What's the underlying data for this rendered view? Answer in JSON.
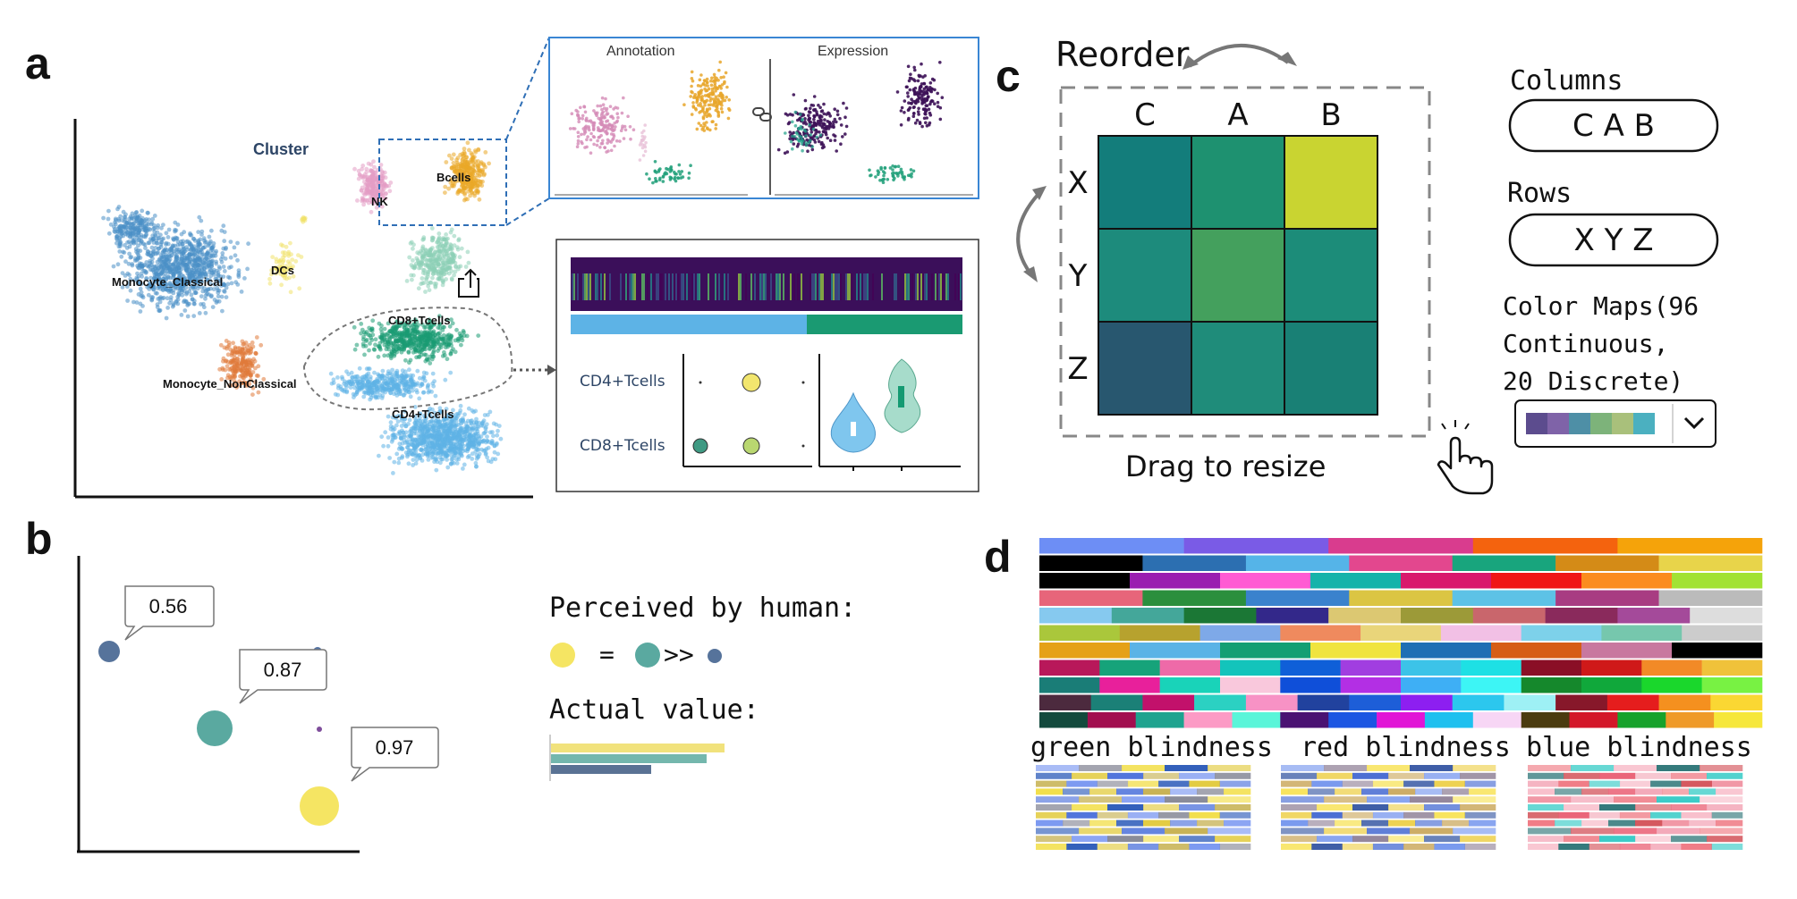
{
  "panel_labels": {
    "a": "a",
    "b": "b",
    "c": "c",
    "d": "d"
  },
  "panel_a": {
    "title": "Cluster",
    "clusters": [
      {
        "name": "Monocyte_Classical",
        "color": "#4a8fc7"
      },
      {
        "name": "DCs",
        "color": "#f0e26a"
      },
      {
        "name": "NK",
        "color": "#e39cc4"
      },
      {
        "name": "Bcells",
        "color": "#eaa827"
      },
      {
        "name": "CD8+Tcells",
        "color": "#1a9a72"
      },
      {
        "name": "CD4+Tcells",
        "color": "#5fb3e6"
      },
      {
        "name": "Monocyte_NonClassical",
        "color": "#e07a3a"
      }
    ],
    "inset": {
      "annotation_title": "Annotation",
      "expression_title": "Expression",
      "link_icon": "link-icon"
    },
    "export_icon": "share-export-icon",
    "dot_plot": {
      "rows": [
        "CD4+Tcells",
        "CD8+Tcells"
      ]
    }
  },
  "panel_b": {
    "callouts": [
      "0.56",
      "0.87",
      "0.97"
    ],
    "perceived_label": "Perceived by human:",
    "equals": "=",
    "much_greater": ">>",
    "actual_label": "Actual value:",
    "points": [
      {
        "value": 0.56,
        "color": "#56739b"
      },
      {
        "value": 0.87,
        "color": "#5aa9a0"
      },
      {
        "value": 0.97,
        "color": "#f5e563"
      }
    ],
    "bar_colors": [
      "#f1e27c",
      "#74b7ad",
      "#5a7294"
    ]
  },
  "panel_c": {
    "title": "Reorder",
    "columns": [
      "C",
      "A",
      "B"
    ],
    "rows": [
      "X",
      "Y",
      "Z"
    ],
    "heatmap_colors": [
      [
        "#137d7b",
        "#1e9170",
        "#c9d431"
      ],
      [
        "#1d8b7c",
        "#44a05d",
        "#1c8c79"
      ],
      [
        "#28576f",
        "#1f8c7a",
        "#198075"
      ]
    ],
    "resize_label": "Drag to resize",
    "columns_label": "Columns",
    "columns_value": "C A B",
    "rows_label": "Rows",
    "rows_value": "X Y Z",
    "colormap_label_1": "Color Maps(96",
    "colormap_label_2": "Continuous,",
    "colormap_label_3": "20 Discrete)",
    "colormap_swatch": [
      "#5c4c8e",
      "#7f63a8",
      "#4e8fa6",
      "#7db37a",
      "#a9c07b",
      "#4bb0c0"
    ],
    "dropdown_icon": "chevron-down-icon",
    "cursor_icon": "hand-pointer-icon"
  },
  "panel_d": {
    "palettes": [
      [
        "#6d8ef5",
        "#7a5be6",
        "#d93c8e",
        "#f4630e",
        "#f5a30a"
      ],
      [
        "#000000",
        "#2c6fb1",
        "#55b4e8",
        "#e3478e",
        "#18a57d",
        "#d48b17",
        "#e8d44a"
      ],
      [
        "#000000",
        "#9a1eb0",
        "#ff5bd3",
        "#15b3aa",
        "#d9186c",
        "#f01616",
        "#fb8c1f",
        "#a2e234"
      ],
      [
        "#e7657a",
        "#2b8f3d",
        "#3a82cd",
        "#dbc543",
        "#5dc2e6",
        "#a83c82",
        "#bbbbbb"
      ],
      [
        "#86c9ef",
        "#44a79a",
        "#1b7735",
        "#33288a",
        "#dcc872",
        "#9c9a38",
        "#c9666c",
        "#8a2a5c",
        "#a44a9a",
        "#dddddd"
      ],
      [
        "#aac73b",
        "#b7a22e",
        "#7ea9e8",
        "#ef8a5e",
        "#e9d57a",
        "#f2c0e5",
        "#7dd1ea",
        "#76c7ad",
        "#cccccc"
      ],
      [
        "#e5a118",
        "#5ab3e6",
        "#139f73",
        "#f0e43f",
        "#1f6fb4",
        "#d65d16",
        "#c8789f",
        "#000000"
      ],
      [
        "#b8185a",
        "#16a37a",
        "#ee6aa8",
        "#13c4bb",
        "#0f5fd8",
        "#a13ee0",
        "#3cc3e8",
        "#1ee0e4",
        "#8a0f26",
        "#cf1919",
        "#f28a27",
        "#f0c23a"
      ],
      [
        "#1a7d77",
        "#e8209b",
        "#19d3b9",
        "#f9c8dc",
        "#0f4fd9",
        "#b32fe4",
        "#3eaff5",
        "#3df5f5",
        "#15882c",
        "#10a83b",
        "#1ad72c",
        "#78f243"
      ],
      [
        "#4c2a3e",
        "#1b8077",
        "#c2116b",
        "#2bd1c2",
        "#f792c5",
        "#21429e",
        "#1d5ed8",
        "#8d1ff0",
        "#2cc7ee",
        "#9ef0f5",
        "#87182a",
        "#e51d1d",
        "#f5901f",
        "#fad733"
      ],
      [
        "#134a3d",
        "#a20e4f",
        "#1ea38f",
        "#fc9bc5",
        "#5af5d9",
        "#4a1272",
        "#1c56e2",
        "#e115d6",
        "#1ec0ef",
        "#f7d6f5",
        "#4b3b0f",
        "#d31729",
        "#17a22c",
        "#ef9a29",
        "#f6e73b"
      ]
    ],
    "green_blindness_label": "green blindness",
    "red_blindness_label": "red blindness",
    "blue_blindness_label": "blue blindness",
    "green_blind_palette": [
      "#6f8ff0",
      "#3f66d8",
      "#1d4fb4",
      "#7d7f8e",
      "#c2ab44",
      "#e0c72f",
      "#f1dc3a"
    ],
    "red_blind_palette": [
      "#6c8fec",
      "#385fce",
      "#2a4d9d",
      "#8a7a91",
      "#c8a455",
      "#eccd3f",
      "#f7e14e"
    ],
    "blue_blind_palette": [
      "#ee6f7a",
      "#e8546a",
      "#1e6b6e",
      "#27c7c2",
      "#f2a1b3",
      "#d0464e",
      "#f7b9c7"
    ]
  }
}
